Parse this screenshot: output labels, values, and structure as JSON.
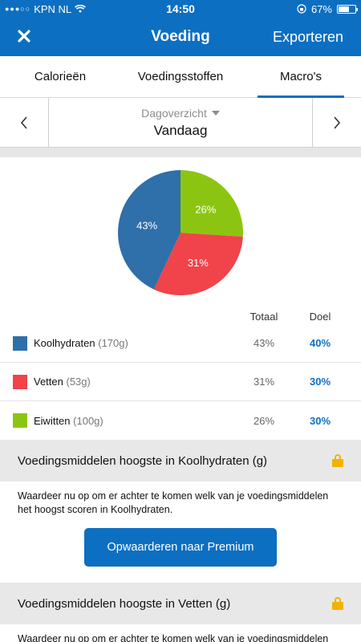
{
  "status_bar": {
    "carrier": "KPN NL",
    "time": "14:50",
    "battery": "67%",
    "battery_level": 0.67
  },
  "nav": {
    "close_icon": "close-icon",
    "title": "Voeding",
    "action": "Exporteren"
  },
  "tabs": [
    {
      "label": "Calorieën",
      "active": false
    },
    {
      "label": "Voedingsstoffen",
      "active": false
    },
    {
      "label": "Macro's",
      "active": true
    }
  ],
  "date_nav": {
    "view_label": "Dagoverzicht",
    "date": "Vandaag"
  },
  "pie": {
    "slices": [
      {
        "name": "Koolhydraten",
        "percent": 43,
        "label": "43%",
        "color": "#2f6faa"
      },
      {
        "name": "Vetten",
        "percent": 31,
        "label": "31%",
        "color": "#f0434a"
      },
      {
        "name": "Eiwitten",
        "percent": 26,
        "label": "26%",
        "color": "#8cc511"
      }
    ]
  },
  "table": {
    "total_header": "Totaal",
    "goal_header": "Doel",
    "rows": [
      {
        "name": "Koolhydraten",
        "amount": "(170g)",
        "total": "43%",
        "goal": "40%",
        "color": "#2f6faa"
      },
      {
        "name": "Vetten",
        "amount": "(53g)",
        "total": "31%",
        "goal": "30%",
        "color": "#f0434a"
      },
      {
        "name": "Eiwitten",
        "amount": "(100g)",
        "total": "26%",
        "goal": "30%",
        "color": "#8cc511"
      }
    ]
  },
  "sections": [
    {
      "title": "Voedingsmiddelen hoogste in Koolhydraten (g)",
      "text": "Waardeer nu op om er achter te komen welk van je voedingsmiddelen het hoogst scoren in Koolhydraten.",
      "button": "Opwaarderen naar Premium"
    },
    {
      "title": "Voedingsmiddelen hoogste in Vetten (g)",
      "text": "Waardeer nu op om er achter te komen welk van je voedingsmiddelen"
    }
  ],
  "colors": {
    "brand": "#0d6fc2",
    "lock": "#f2b200"
  }
}
